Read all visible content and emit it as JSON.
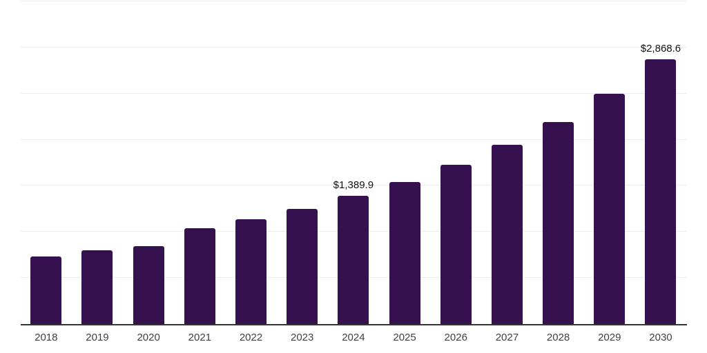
{
  "chart_data": {
    "type": "bar",
    "title": "",
    "xlabel": "",
    "ylabel": "",
    "categories": [
      "2018",
      "2019",
      "2020",
      "2021",
      "2022",
      "2023",
      "2024",
      "2025",
      "2026",
      "2027",
      "2028",
      "2029",
      "2030"
    ],
    "values": [
      730,
      800,
      845,
      1040,
      1140,
      1250,
      1389.9,
      1540,
      1730,
      1945,
      2195,
      2500,
      2868.6
    ],
    "value_labels": {
      "2024": "$1,389.9",
      "2030": "$2,868.6"
    },
    "ylim": [
      0,
      3500
    ],
    "grid_step": 500,
    "grid": "horizontal-only",
    "y_tick_labels": "none",
    "legend_position": "none",
    "colors": {
      "bar": "#36114F",
      "axis": "#333333",
      "gridline": "#ECECEC",
      "x_tick_label": "#404040",
      "value_label": "#111111",
      "background": "#FFFFFF"
    }
  }
}
